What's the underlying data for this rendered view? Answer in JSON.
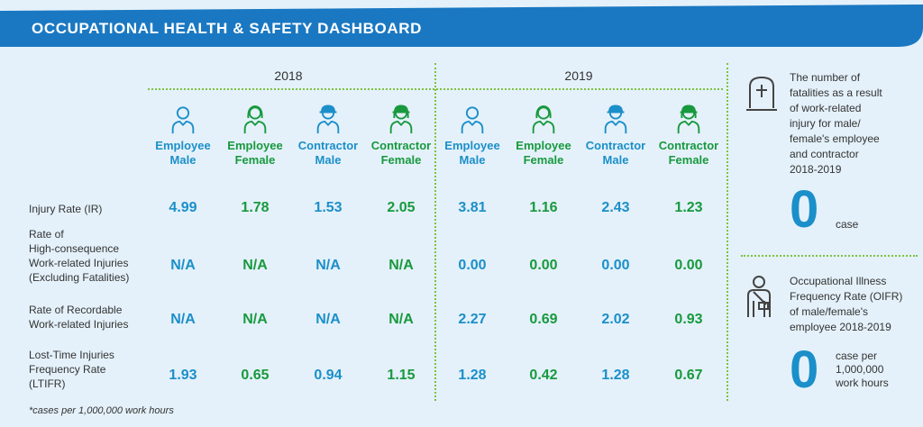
{
  "header": {
    "title": "OCCUPATIONAL HEALTH & SAFETY DASHBOARD"
  },
  "years": [
    "2018",
    "2019"
  ],
  "columns": [
    {
      "label": "Employee\nMale",
      "icon": "employee-male-icon",
      "color": "#1b8fc9"
    },
    {
      "label": "Employee\nFemale",
      "icon": "employee-female-icon",
      "color": "#18993e"
    },
    {
      "label": "Contractor\nMale",
      "icon": "contractor-male-icon",
      "color": "#1b8fc9"
    },
    {
      "label": "Contractor\nFemale",
      "icon": "contractor-female-icon",
      "color": "#18993e"
    },
    {
      "label": "Employee\nMale",
      "icon": "employee-male-icon",
      "color": "#1b8fc9"
    },
    {
      "label": "Employee\nFemale",
      "icon": "employee-female-icon",
      "color": "#18993e"
    },
    {
      "label": "Contractor\nMale",
      "icon": "contractor-male-icon",
      "color": "#1b8fc9"
    },
    {
      "label": "Contractor\nFemale",
      "icon": "contractor-female-icon",
      "color": "#18993e"
    }
  ],
  "rows": [
    {
      "label": "Injury Rate (IR)",
      "values": [
        "4.99",
        "1.78",
        "1.53",
        "2.05",
        "3.81",
        "1.16",
        "2.43",
        "1.23"
      ]
    },
    {
      "label": "Rate of\nHigh-consequence\nWork-related Injuries\n(Excluding Fatalities)",
      "values": [
        "N/A",
        "N/A",
        "N/A",
        "N/A",
        "0.00",
        "0.00",
        "0.00",
        "0.00"
      ]
    },
    {
      "label": "Rate of Recordable\nWork-related Injuries",
      "values": [
        "N/A",
        "N/A",
        "N/A",
        "N/A",
        "2.27",
        "0.69",
        "2.02",
        "0.93"
      ]
    },
    {
      "label": "Lost-Time Injuries\nFrequency Rate\n(LTIFR)",
      "values": [
        "1.93",
        "0.65",
        "0.94",
        "1.15",
        "1.28",
        "0.42",
        "1.28",
        "0.67"
      ]
    }
  ],
  "footnote": "*cases per 1,000,000 work hours",
  "side": {
    "fatalities": {
      "icon": "tombstone-icon",
      "text": "The number of\nfatalities as a result\nof work-related\ninjury for male/\nfemale's employee\nand contractor\n2018-2019",
      "value": "0",
      "unit": "case"
    },
    "illness": {
      "icon": "injured-person-icon",
      "text": "Occupational Illness\nFrequency Rate (OIFR)\nof male/female's\nemployee 2018-2019",
      "value": "0",
      "unit": "case per\n1,000,000\nwork hours"
    }
  },
  "colors": {
    "banner": "#1a78c2",
    "blue": "#1b8fc9",
    "green": "#18993e",
    "background": "#e4f1fa",
    "dots": "#7cc242"
  }
}
